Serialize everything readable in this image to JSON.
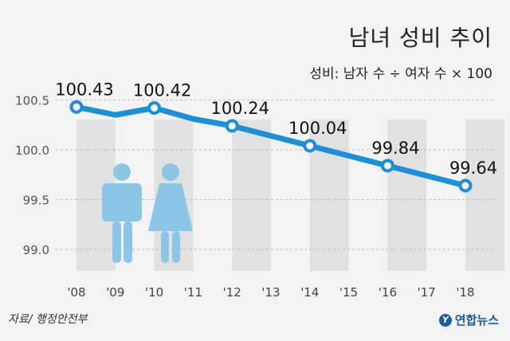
{
  "title": "남녀 성비 추이",
  "subtitle": "성비: 남자 수 ÷ 여자 수 × 100",
  "source": "자료/ 행정안전부",
  "brand": {
    "name": "연합뉴스",
    "logo_glyph": "Y"
  },
  "colors": {
    "line": "#1b8fd8",
    "marker_fill": "#ffffff",
    "figure": "#8cc6e7",
    "band": "#e1e1e1",
    "background": "#f3f3f3"
  },
  "chart_data": {
    "type": "line",
    "title": "남녀 성비 추이",
    "subtitle": "성비: 남자 수 ÷ 여자 수 × 100",
    "categories": [
      "'08",
      "'09",
      "'10",
      "'11",
      "'12",
      "'13",
      "'14",
      "'15",
      "'16",
      "'17",
      "'18"
    ],
    "values": [
      100.43,
      100.35,
      100.42,
      100.31,
      100.24,
      100.14,
      100.04,
      99.94,
      99.84,
      99.74,
      99.64
    ],
    "labeled_points": [
      {
        "category": "'08",
        "value": 100.43,
        "label": "100.43"
      },
      {
        "category": "'10",
        "value": 100.42,
        "label": "100.42"
      },
      {
        "category": "'12",
        "value": 100.24,
        "label": "100.24"
      },
      {
        "category": "'14",
        "value": 100.04,
        "label": "100.04"
      },
      {
        "category": "'16",
        "value": 99.84,
        "label": "99.84"
      },
      {
        "category": "'18",
        "value": 99.64,
        "label": "99.64"
      }
    ],
    "yticks": [
      "100.5",
      "100.0",
      "99.5",
      "99.0"
    ],
    "ylim": [
      98.9,
      100.55
    ],
    "grid": true,
    "legend": "none",
    "xlabel": "",
    "ylabel": ""
  }
}
